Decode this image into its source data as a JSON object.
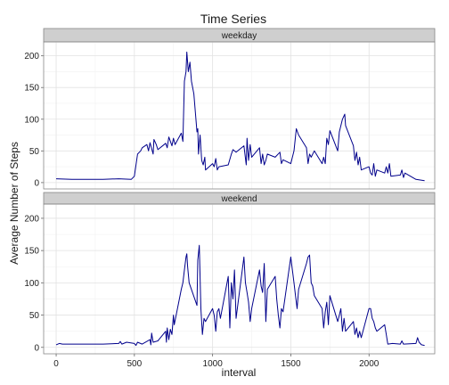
{
  "chart_data": {
    "type": "line",
    "title": "Time Series",
    "xlabel": "interval",
    "ylabel": "Average Number of Steps",
    "xlim": [
      -80,
      2420
    ],
    "ylim": [
      -10,
      222
    ],
    "x_ticks": [
      0,
      500,
      1000,
      1500,
      2000
    ],
    "y_ticks": [
      0,
      50,
      100,
      150,
      200
    ],
    "grid": true,
    "line_color": "#00008B",
    "panels": [
      {
        "label": "weekday",
        "points": [
          [
            0,
            6
          ],
          [
            100,
            5
          ],
          [
            200,
            5
          ],
          [
            300,
            5
          ],
          [
            400,
            6
          ],
          [
            480,
            5
          ],
          [
            500,
            10
          ],
          [
            520,
            45
          ],
          [
            540,
            50
          ],
          [
            550,
            55
          ],
          [
            580,
            60
          ],
          [
            590,
            50
          ],
          [
            600,
            63
          ],
          [
            620,
            45
          ],
          [
            625,
            68
          ],
          [
            640,
            60
          ],
          [
            650,
            52
          ],
          [
            700,
            62
          ],
          [
            710,
            55
          ],
          [
            720,
            72
          ],
          [
            740,
            58
          ],
          [
            750,
            70
          ],
          [
            760,
            60
          ],
          [
            800,
            78
          ],
          [
            810,
            65
          ],
          [
            820,
            160
          ],
          [
            830,
            175
          ],
          [
            835,
            206
          ],
          [
            845,
            175
          ],
          [
            855,
            190
          ],
          [
            865,
            160
          ],
          [
            880,
            140
          ],
          [
            900,
            80
          ],
          [
            905,
            85
          ],
          [
            910,
            45
          ],
          [
            920,
            75
          ],
          [
            930,
            35
          ],
          [
            940,
            28
          ],
          [
            950,
            40
          ],
          [
            955,
            20
          ],
          [
            1000,
            30
          ],
          [
            1010,
            25
          ],
          [
            1020,
            38
          ],
          [
            1030,
            20
          ],
          [
            1040,
            25
          ],
          [
            1100,
            28
          ],
          [
            1120,
            45
          ],
          [
            1130,
            52
          ],
          [
            1150,
            48
          ],
          [
            1200,
            58
          ],
          [
            1215,
            28
          ],
          [
            1220,
            70
          ],
          [
            1230,
            35
          ],
          [
            1240,
            60
          ],
          [
            1250,
            40
          ],
          [
            1300,
            55
          ],
          [
            1310,
            30
          ],
          [
            1320,
            45
          ],
          [
            1330,
            28
          ],
          [
            1340,
            35
          ],
          [
            1350,
            45
          ],
          [
            1400,
            40
          ],
          [
            1430,
            48
          ],
          [
            1440,
            30
          ],
          [
            1450,
            36
          ],
          [
            1500,
            30
          ],
          [
            1520,
            50
          ],
          [
            1535,
            85
          ],
          [
            1550,
            75
          ],
          [
            1600,
            55
          ],
          [
            1610,
            30
          ],
          [
            1620,
            45
          ],
          [
            1630,
            40
          ],
          [
            1650,
            50
          ],
          [
            1700,
            30
          ],
          [
            1710,
            40
          ],
          [
            1720,
            30
          ],
          [
            1730,
            70
          ],
          [
            1740,
            60
          ],
          [
            1750,
            82
          ],
          [
            1800,
            50
          ],
          [
            1810,
            80
          ],
          [
            1830,
            100
          ],
          [
            1845,
            108
          ],
          [
            1850,
            90
          ],
          [
            1900,
            58
          ],
          [
            1910,
            35
          ],
          [
            1920,
            48
          ],
          [
            1930,
            28
          ],
          [
            1940,
            40
          ],
          [
            1950,
            20
          ],
          [
            2000,
            25
          ],
          [
            2010,
            15
          ],
          [
            2020,
            12
          ],
          [
            2030,
            30
          ],
          [
            2040,
            10
          ],
          [
            2050,
            20
          ],
          [
            2100,
            15
          ],
          [
            2110,
            25
          ],
          [
            2120,
            15
          ],
          [
            2130,
            30
          ],
          [
            2140,
            10
          ],
          [
            2200,
            12
          ],
          [
            2210,
            20
          ],
          [
            2220,
            8
          ],
          [
            2230,
            15
          ],
          [
            2300,
            5
          ],
          [
            2355,
            3
          ]
        ]
      },
      {
        "label": "weekend",
        "points": [
          [
            0,
            4
          ],
          [
            20,
            6
          ],
          [
            40,
            5
          ],
          [
            100,
            5
          ],
          [
            200,
            5
          ],
          [
            300,
            5
          ],
          [
            400,
            6
          ],
          [
            410,
            9
          ],
          [
            420,
            5
          ],
          [
            450,
            8
          ],
          [
            500,
            6
          ],
          [
            510,
            3
          ],
          [
            520,
            8
          ],
          [
            550,
            5
          ],
          [
            600,
            12
          ],
          [
            605,
            4
          ],
          [
            610,
            22
          ],
          [
            620,
            8
          ],
          [
            650,
            10
          ],
          [
            700,
            25
          ],
          [
            705,
            8
          ],
          [
            710,
            30
          ],
          [
            720,
            12
          ],
          [
            730,
            28
          ],
          [
            740,
            20
          ],
          [
            750,
            50
          ],
          [
            755,
            35
          ],
          [
            800,
            90
          ],
          [
            810,
            100
          ],
          [
            820,
            120
          ],
          [
            830,
            140
          ],
          [
            835,
            145
          ],
          [
            840,
            125
          ],
          [
            850,
            100
          ],
          [
            900,
            65
          ],
          [
            905,
            135
          ],
          [
            915,
            158
          ],
          [
            925,
            60
          ],
          [
            935,
            20
          ],
          [
            945,
            45
          ],
          [
            955,
            40
          ],
          [
            1000,
            60
          ],
          [
            1010,
            50
          ],
          [
            1020,
            25
          ],
          [
            1030,
            55
          ],
          [
            1040,
            60
          ],
          [
            1050,
            45
          ],
          [
            1100,
            110
          ],
          [
            1110,
            30
          ],
          [
            1120,
            100
          ],
          [
            1130,
            75
          ],
          [
            1140,
            120
          ],
          [
            1150,
            45
          ],
          [
            1200,
            140
          ],
          [
            1210,
            100
          ],
          [
            1220,
            85
          ],
          [
            1230,
            70
          ],
          [
            1240,
            40
          ],
          [
            1250,
            60
          ],
          [
            1300,
            120
          ],
          [
            1310,
            95
          ],
          [
            1320,
            85
          ],
          [
            1330,
            130
          ],
          [
            1340,
            40
          ],
          [
            1350,
            90
          ],
          [
            1400,
            110
          ],
          [
            1410,
            75
          ],
          [
            1420,
            50
          ],
          [
            1430,
            30
          ],
          [
            1440,
            60
          ],
          [
            1450,
            55
          ],
          [
            1500,
            140
          ],
          [
            1510,
            120
          ],
          [
            1520,
            100
          ],
          [
            1530,
            80
          ],
          [
            1540,
            60
          ],
          [
            1550,
            90
          ],
          [
            1600,
            130
          ],
          [
            1610,
            140
          ],
          [
            1620,
            143
          ],
          [
            1630,
            100
          ],
          [
            1640,
            95
          ],
          [
            1650,
            80
          ],
          [
            1700,
            60
          ],
          [
            1710,
            30
          ],
          [
            1720,
            55
          ],
          [
            1730,
            70
          ],
          [
            1740,
            35
          ],
          [
            1750,
            80
          ],
          [
            1800,
            40
          ],
          [
            1810,
            50
          ],
          [
            1820,
            60
          ],
          [
            1830,
            25
          ],
          [
            1840,
            45
          ],
          [
            1850,
            25
          ],
          [
            1900,
            40
          ],
          [
            1910,
            20
          ],
          [
            1920,
            30
          ],
          [
            1930,
            15
          ],
          [
            1940,
            25
          ],
          [
            1950,
            15
          ],
          [
            2000,
            60
          ],
          [
            2010,
            60
          ],
          [
            2020,
            45
          ],
          [
            2030,
            40
          ],
          [
            2040,
            30
          ],
          [
            2050,
            25
          ],
          [
            2100,
            35
          ],
          [
            2110,
            20
          ],
          [
            2120,
            5
          ],
          [
            2150,
            6
          ],
          [
            2200,
            5
          ],
          [
            2210,
            10
          ],
          [
            2220,
            5
          ],
          [
            2300,
            6
          ],
          [
            2310,
            15
          ],
          [
            2320,
            8
          ],
          [
            2335,
            4
          ],
          [
            2355,
            3
          ]
        ]
      }
    ]
  }
}
